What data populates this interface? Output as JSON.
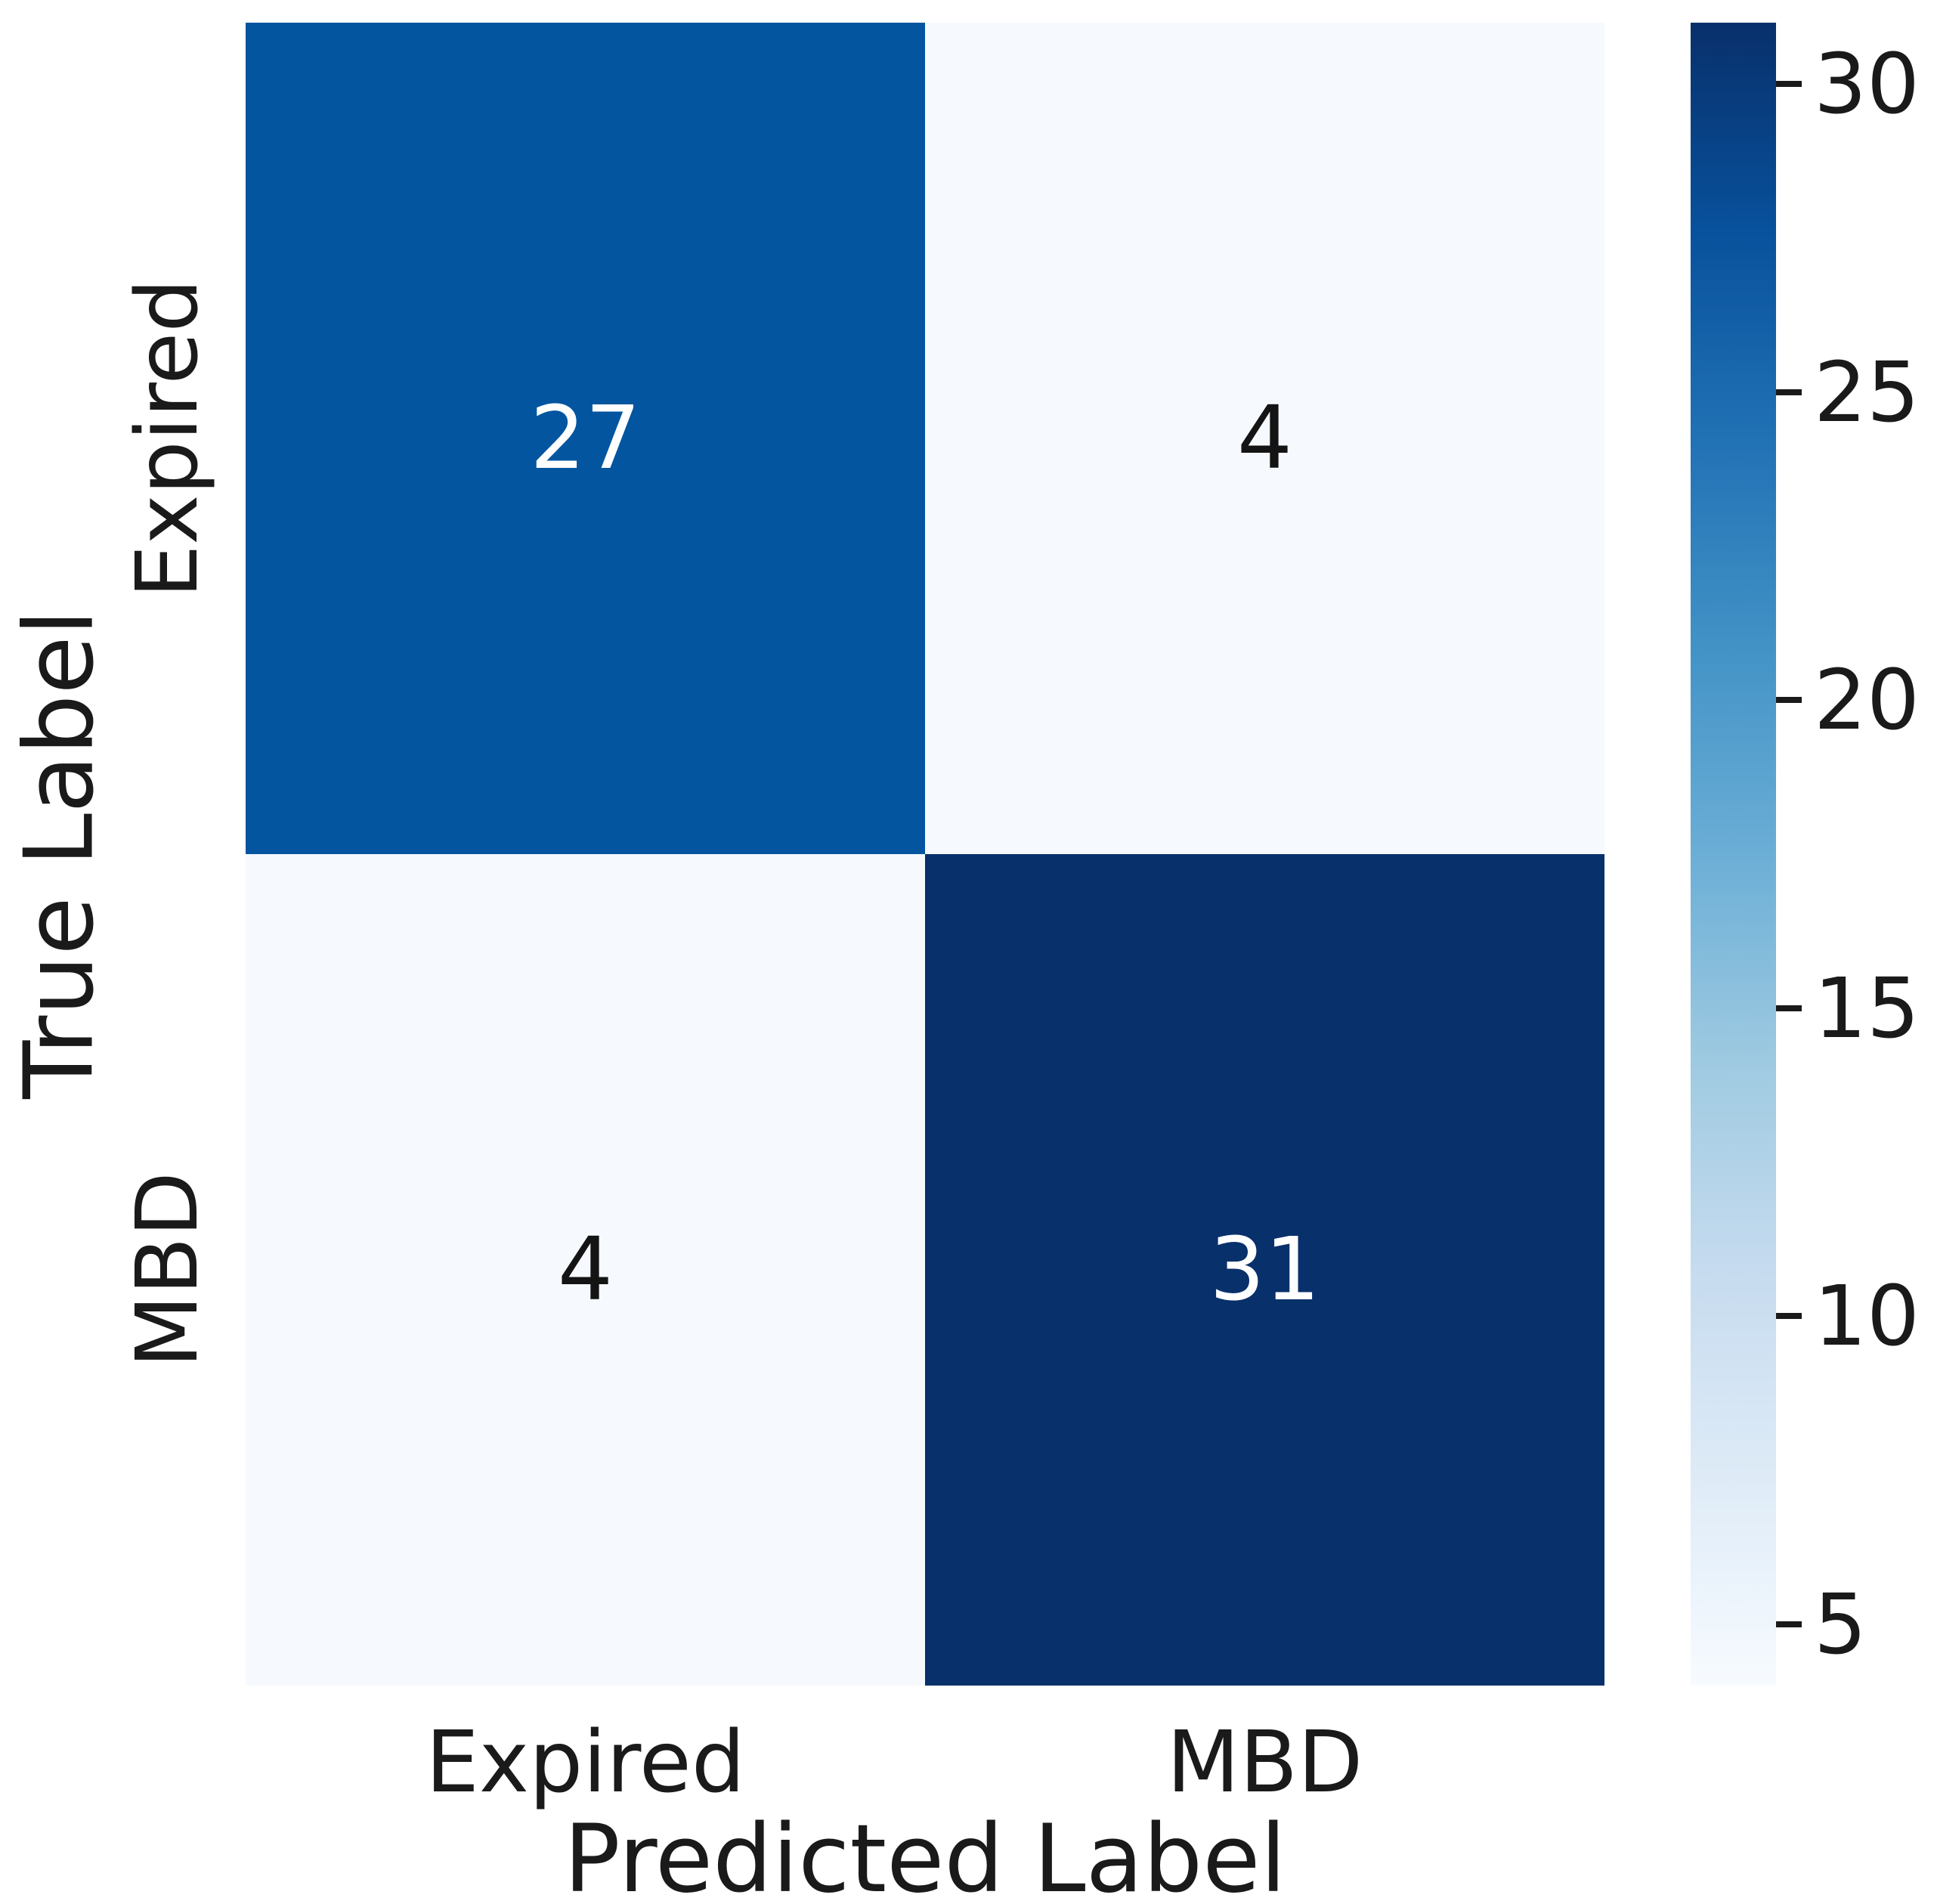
{
  "figure": {
    "background": "#ffffff"
  },
  "chart_data": {
    "type": "heatmap",
    "title": "",
    "xlabel": "Predicted Label",
    "ylabel": "True Label",
    "x_tick_labels": [
      "Expired",
      "MBD"
    ],
    "y_tick_labels": [
      "Expired",
      "MBD"
    ],
    "categories_note": "rows = true label, columns = predicted label",
    "matrix": [
      [
        27,
        4
      ],
      [
        4,
        31
      ]
    ],
    "vmin": 4,
    "vmax": 31,
    "colormap": "Blues",
    "colorbar_ticks": [
      30,
      25,
      20,
      15,
      10,
      5
    ],
    "legend_position": "right-colorbar",
    "grid": false
  },
  "axes": {
    "xlabel": "Predicted Label",
    "ylabel": "True Label",
    "xtick_0": "Expired",
    "xtick_1": "MBD",
    "ytick_0": "Expired",
    "ytick_1": "MBD"
  },
  "cells": [
    {
      "value": "27",
      "bg": "#0355a0",
      "fg": "#ffffff"
    },
    {
      "value": "4",
      "bg": "#f6fafe",
      "fg": "#141414"
    },
    {
      "value": "4",
      "bg": "#f6fafe",
      "fg": "#141414"
    },
    {
      "value": "31",
      "bg": "#08306b",
      "fg": "#ffffff"
    }
  ],
  "colorbar": {
    "stops": [
      "#08306b",
      "#08519c",
      "#2171b5",
      "#4292c6",
      "#6baed6",
      "#9ecae1",
      "#c6dbef",
      "#deebf7",
      "#f7fbff"
    ],
    "ticks": [
      {
        "label": "30",
        "pos_pct": 3.7
      },
      {
        "label": "25",
        "pos_pct": 22.22
      },
      {
        "label": "20",
        "pos_pct": 40.74
      },
      {
        "label": "15",
        "pos_pct": 59.26
      },
      {
        "label": "10",
        "pos_pct": 77.78
      },
      {
        "label": "5",
        "pos_pct": 96.3
      }
    ]
  },
  "colors": {
    "cell_high": "#08306b",
    "cell_mid": "#0355a0",
    "cell_low": "#f6fafe",
    "text_dark": "#1a1a1a",
    "text_light": "#ffffff"
  }
}
